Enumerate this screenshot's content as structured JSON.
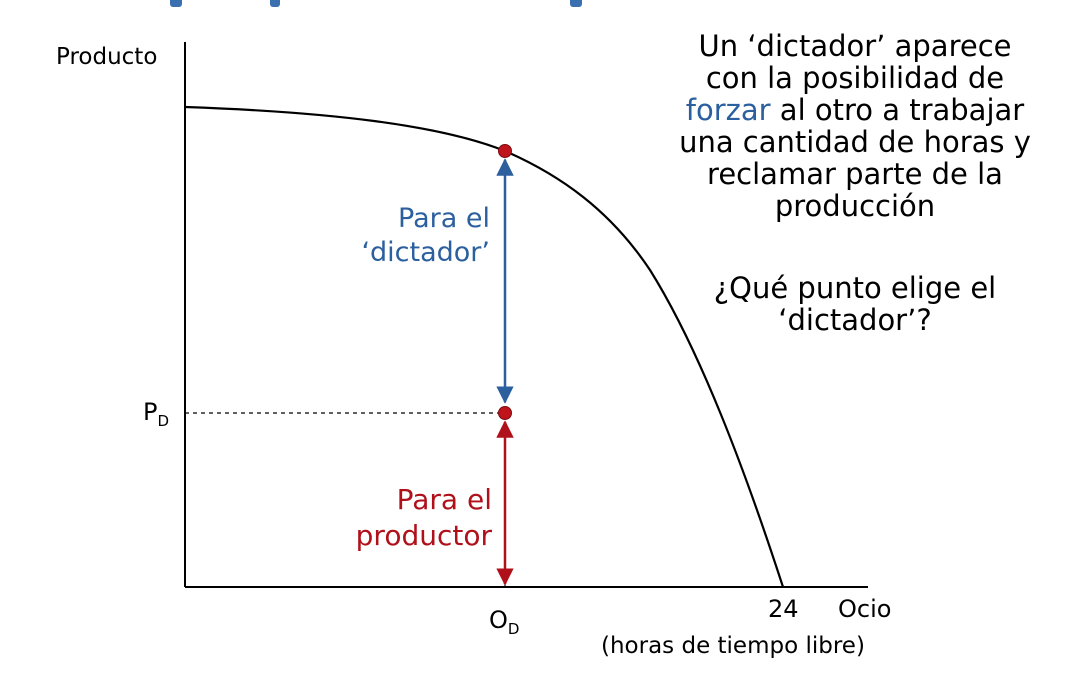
{
  "axes": {
    "y_label": "Producto",
    "x_end_value": "24",
    "x_label": "Ocio",
    "x_sublabel": "(horas de tiempo libre)",
    "p_label_main": "P",
    "p_label_sub": "D",
    "o_label_main": "O",
    "o_label_sub": "D"
  },
  "arrows": {
    "upper_line1": "Para el",
    "upper_line2": "‘dictador’",
    "lower_line1": "Para el",
    "lower_line2": "productor"
  },
  "note": {
    "line1": "Un ‘dictador’ aparece",
    "line2": "con la posibilidad de",
    "line3_emph": "forzar",
    "line3_rest": " al otro a trabajar",
    "line4": "una cantidad de horas y",
    "line5": "reclamar parte de la",
    "line6": "producción",
    "question1": "¿Qué punto elige el",
    "question2": "‘dictador’?"
  },
  "colors": {
    "blue": "#2b5f9e",
    "red": "#b0101a",
    "point": "#c0141c",
    "curve": "#000000"
  }
}
